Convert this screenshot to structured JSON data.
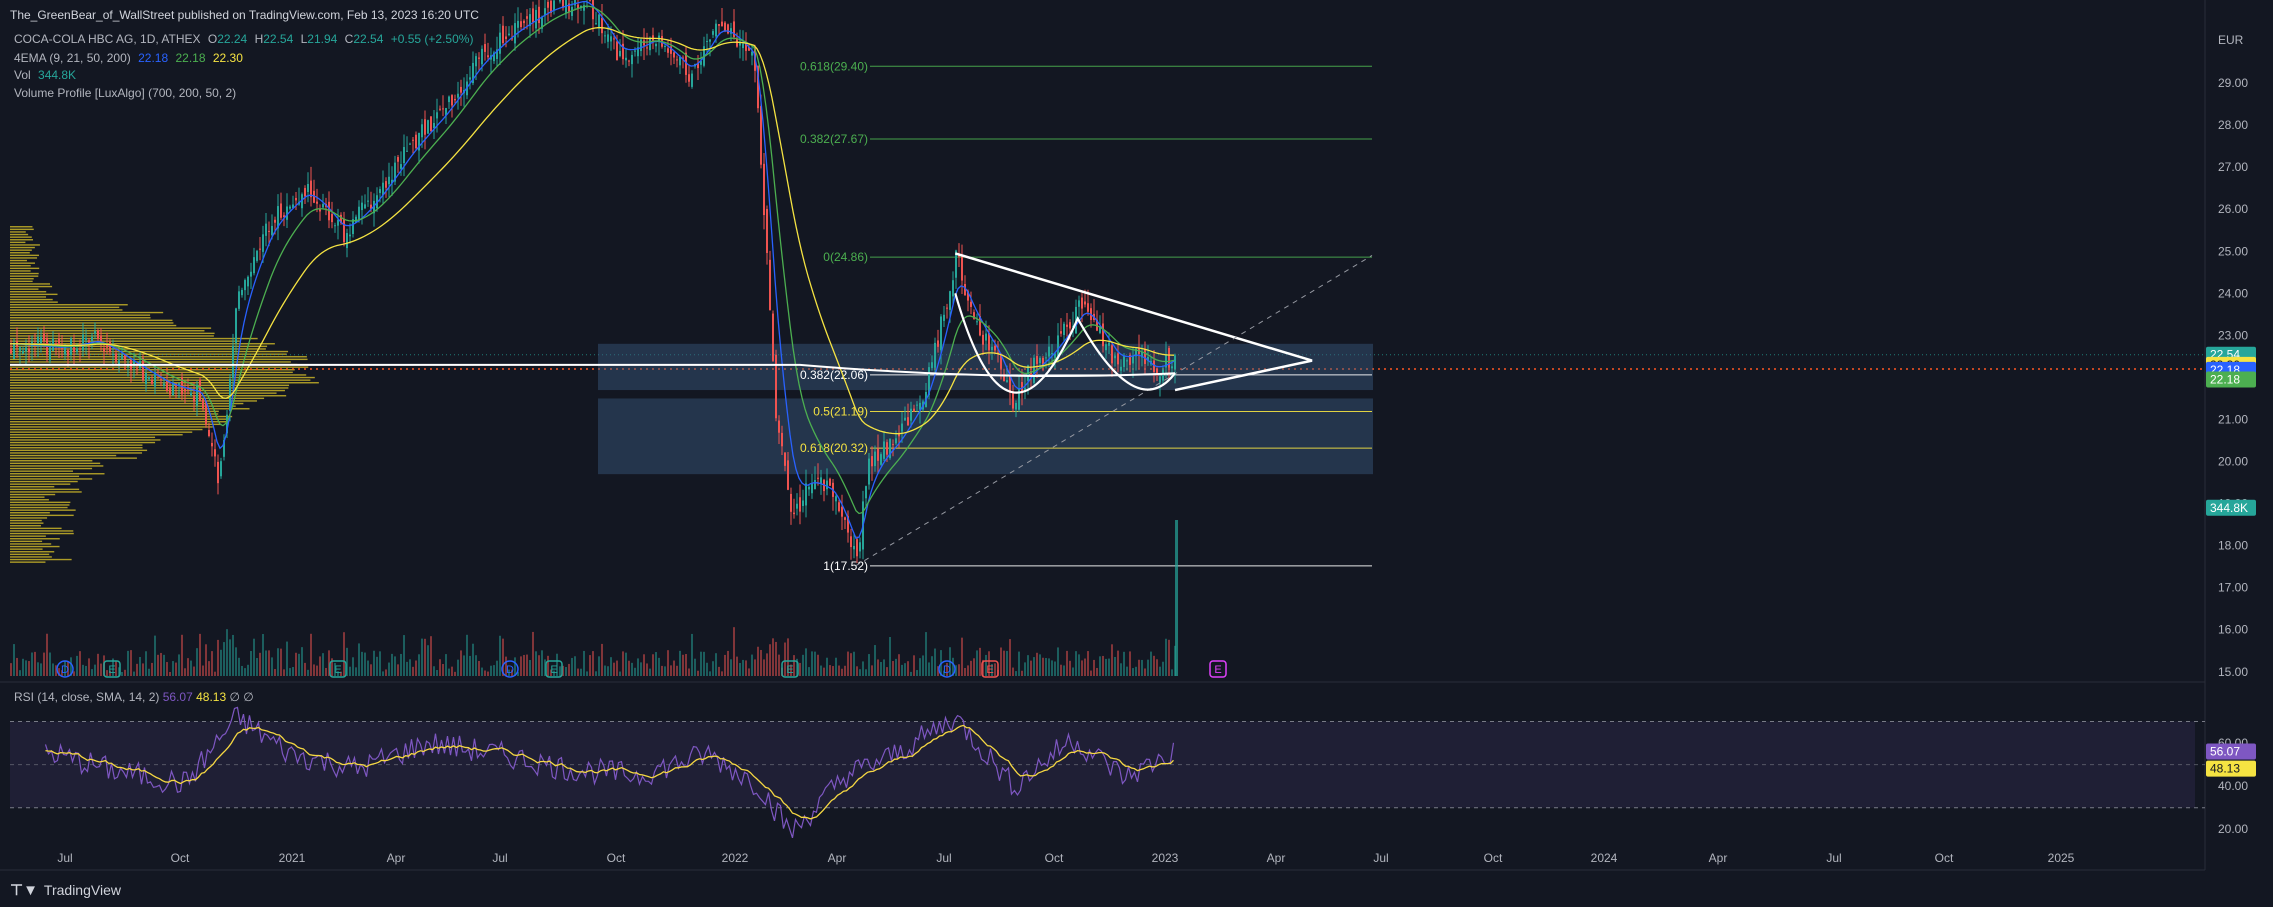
{
  "header": {
    "publisher": "The_GreenBear_of_WallStreet published on TradingView.com, Feb 13, 2023 16:20 UTC"
  },
  "legend": {
    "symbol": "COCA-COLA HBC AG, 1D, ATHEX",
    "o_label": "O",
    "o_value": "22.24",
    "h_label": "H",
    "h_value": "22.54",
    "l_label": "L",
    "l_value": "21.94",
    "c_label": "C",
    "c_value": "22.54",
    "change": "+0.55 (+2.50%)",
    "ema_label": "4EMA (9, 21, 50, 200)",
    "ema_v1": "22.18",
    "ema_v2": "22.18",
    "ema_v3": "22.30",
    "vol_label": "Vol",
    "vol_value": "344.8K",
    "vp_label": "Volume Profile [LuxAlgo] (700, 200, 50, 2)",
    "rsi_label": "RSI (14, close, SMA, 14, 2)",
    "rsi_v1": "56.07",
    "rsi_v2": "48.13",
    "rsi_tail": "∅ ∅"
  },
  "colors": {
    "background": "#131722",
    "up": "#26a69a",
    "down": "#ef5350",
    "fib": "#4caf50",
    "fib_yellow": "#f5e342",
    "volume_profile": "#c9b428",
    "rsi": "#7e57c2",
    "rsi_sma": "#f5d742"
  },
  "price_axis": {
    "currency": "EUR",
    "ticks": [
      "29.00",
      "28.00",
      "27.00",
      "26.00",
      "25.00",
      "24.00",
      "23.00",
      "21.00",
      "20.00",
      "19.00",
      "18.00",
      "17.00",
      "16.00",
      "15.00"
    ],
    "badges": [
      {
        "text": "22.54",
        "color": "#26a69a"
      },
      {
        "text": "22.30",
        "color": "#f5e342"
      },
      {
        "text": "22.18",
        "color": "#2962ff"
      },
      {
        "text": "22.18",
        "color": "#4caf50"
      },
      {
        "text": "344.8K",
        "color": "#26a69a"
      }
    ]
  },
  "rsi_axis": {
    "ticks": [
      "60.00",
      "40.00",
      "20.00"
    ],
    "badges": [
      {
        "text": "56.07",
        "color": "#7e57c2"
      },
      {
        "text": "48.13",
        "color": "#f5e342"
      }
    ]
  },
  "time_axis": {
    "ticks": [
      "Jul",
      "Oct",
      "2021",
      "Apr",
      "Jul",
      "Oct",
      "2022",
      "Apr",
      "Jul",
      "Oct",
      "2023",
      "Apr",
      "Jul",
      "Oct",
      "2024",
      "Apr",
      "Jul",
      "Oct",
      "2025"
    ]
  },
  "fib_levels": [
    {
      "label": "0.618(29.40)",
      "price": 29.4,
      "color": "#4caf50"
    },
    {
      "label": "0.382(27.67)",
      "price": 27.67,
      "color": "#4caf50"
    },
    {
      "label": "0(24.86)",
      "price": 24.86,
      "color": "#4caf50"
    },
    {
      "label": "0.382(22.06)",
      "price": 22.06,
      "color": "#ffffff"
    },
    {
      "label": "0.5(21.19)",
      "price": 21.19,
      "color": "#f5e342"
    },
    {
      "label": "0.618(20.32)",
      "price": 20.32,
      "color": "#f5e342"
    },
    {
      "label": "1(17.52)",
      "price": 17.52,
      "color": "#ffffff"
    }
  ],
  "event_markers": [
    "D",
    "E",
    "E",
    "D",
    "E",
    "E",
    "D",
    "E",
    "E"
  ],
  "branding": {
    "name": "TradingView"
  },
  "chart_data": {
    "type": "candlestick",
    "title": "COCA-COLA HBC AG, 1D, ATHEX",
    "ylabel": "EUR",
    "ylim": [
      14.9,
      30.5
    ],
    "x_range": [
      "2020-05",
      "2025-08"
    ],
    "series": [
      {
        "name": "close",
        "points": [
          [
            "2020-05-01",
            22.8
          ],
          [
            "2020-06-15",
            22.7
          ],
          [
            "2020-07-15",
            22.9
          ],
          [
            "2020-08-15",
            22.3
          ],
          [
            "2020-09-15",
            21.8
          ],
          [
            "2020-10-15",
            21.6
          ],
          [
            "2020-10-30",
            19.4
          ],
          [
            "2020-11-15",
            24.0
          ],
          [
            "2020-12-15",
            25.8
          ],
          [
            "2021-01-15",
            26.5
          ],
          [
            "2021-02-15",
            25.4
          ],
          [
            "2021-03-15",
            26.3
          ],
          [
            "2021-04-15",
            27.5
          ],
          [
            "2021-05-15",
            28.4
          ],
          [
            "2021-06-15",
            29.6
          ],
          [
            "2021-07-15",
            30.3
          ],
          [
            "2021-08-15",
            30.8
          ],
          [
            "2021-09-15",
            31.0
          ],
          [
            "2021-10-15",
            29.6
          ],
          [
            "2021-11-15",
            30.1
          ],
          [
            "2021-12-15",
            29.2
          ],
          [
            "2022-01-10",
            30.5
          ],
          [
            "2022-02-10",
            29.5
          ],
          [
            "2022-03-01",
            21.0
          ],
          [
            "2022-03-15",
            18.6
          ],
          [
            "2022-04-01",
            19.6
          ],
          [
            "2022-04-20",
            19.2
          ],
          [
            "2022-05-10",
            17.6
          ],
          [
            "2022-05-20",
            20.0
          ],
          [
            "2022-06-15",
            20.6
          ],
          [
            "2022-07-10",
            21.8
          ],
          [
            "2022-07-25",
            23.5
          ],
          [
            "2022-08-05",
            24.9
          ],
          [
            "2022-08-20",
            23.3
          ],
          [
            "2022-09-10",
            22.4
          ],
          [
            "2022-09-25",
            21.3
          ],
          [
            "2022-10-10",
            22.3
          ],
          [
            "2022-10-25",
            22.6
          ],
          [
            "2022-11-10",
            23.2
          ],
          [
            "2022-11-25",
            23.8
          ],
          [
            "2022-12-10",
            22.9
          ],
          [
            "2022-12-25",
            22.3
          ],
          [
            "2023-01-10",
            22.6
          ],
          [
            "2023-01-25",
            22.1
          ],
          [
            "2023-02-13",
            22.54
          ]
        ]
      },
      {
        "name": "RSI",
        "points": [
          [
            "2020-06-01",
            56
          ],
          [
            "2020-08-01",
            47
          ],
          [
            "2020-10-01",
            41
          ],
          [
            "2020-11-15",
            72
          ],
          [
            "2021-01-01",
            55
          ],
          [
            "2021-03-01",
            48
          ],
          [
            "2021-05-01",
            60
          ],
          [
            "2021-07-01",
            55
          ],
          [
            "2021-09-01",
            48
          ],
          [
            "2021-11-01",
            45
          ],
          [
            "2022-01-01",
            55
          ],
          [
            "2022-02-15",
            40
          ],
          [
            "2022-03-15",
            18
          ],
          [
            "2022-05-01",
            45
          ],
          [
            "2022-06-15",
            55
          ],
          [
            "2022-08-05",
            72
          ],
          [
            "2022-09-25",
            40
          ],
          [
            "2022-11-15",
            62
          ],
          [
            "2023-01-01",
            44
          ],
          [
            "2023-02-13",
            56.07
          ]
        ]
      }
    ],
    "rsi_ylim": [
      15,
      80
    ],
    "annotations": [
      "Symmetrical triangle",
      "Cup-and-handle",
      "Fibonacci retracement",
      "Volume profile"
    ]
  }
}
